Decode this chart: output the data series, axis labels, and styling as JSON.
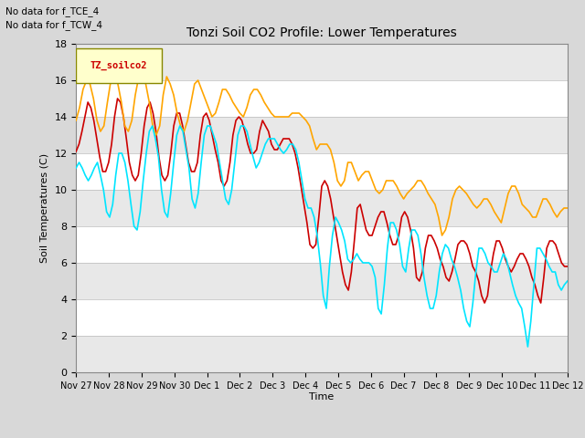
{
  "title": "Tonzi Soil CO2 Profile: Lower Temperatures",
  "xlabel": "Time",
  "ylabel": "Soil Temperatures (C)",
  "top_left_text": [
    "No data for f_TCE_4",
    "No data for f_TCW_4"
  ],
  "legend_label_text": "TZ_soilco2",
  "ylim": [
    0,
    18
  ],
  "yticks": [
    0,
    2,
    4,
    6,
    8,
    10,
    12,
    14,
    16,
    18
  ],
  "xtick_labels": [
    "Nov 27",
    "Nov 28",
    "Nov 29",
    "Nov 30",
    "Dec 1",
    "Dec 2",
    "Dec 3",
    "Dec 4",
    "Dec 5",
    "Dec 6",
    "Dec 7",
    "Dec 8",
    "Dec 9",
    "Dec 10",
    "Dec 11",
    "Dec 12"
  ],
  "series": {
    "open": {
      "color": "#cc0000",
      "linewidth": 1.2,
      "data": [
        12.1,
        12.5,
        13.2,
        14.0,
        14.8,
        14.5,
        13.8,
        12.8,
        11.8,
        11.0,
        11.0,
        11.5,
        12.5,
        14.0,
        15.0,
        14.8,
        14.0,
        12.8,
        11.5,
        10.8,
        10.5,
        10.8,
        12.0,
        13.5,
        14.5,
        14.8,
        14.2,
        13.2,
        11.8,
        10.8,
        10.5,
        10.8,
        12.0,
        13.5,
        14.2,
        14.2,
        13.5,
        12.5,
        11.5,
        11.0,
        11.0,
        11.5,
        13.0,
        14.0,
        14.2,
        13.8,
        13.0,
        12.2,
        11.5,
        10.5,
        10.2,
        10.5,
        11.5,
        13.0,
        13.8,
        14.0,
        13.8,
        13.2,
        12.5,
        12.0,
        12.0,
        12.2,
        13.2,
        13.8,
        13.5,
        13.2,
        12.5,
        12.2,
        12.2,
        12.5,
        12.8,
        12.8,
        12.8,
        12.5,
        12.0,
        11.2,
        10.2,
        9.2,
        8.2,
        7.0,
        6.8,
        7.0,
        8.5,
        10.2,
        10.5,
        10.2,
        9.5,
        8.5,
        7.5,
        6.5,
        5.5,
        4.8,
        4.5,
        5.5,
        7.2,
        9.0,
        9.2,
        8.5,
        7.8,
        7.5,
        7.5,
        8.0,
        8.5,
        8.8,
        8.8,
        8.2,
        7.5,
        7.0,
        7.0,
        7.5,
        8.5,
        8.8,
        8.5,
        7.8,
        6.8,
        5.2,
        5.0,
        5.5,
        6.8,
        7.5,
        7.5,
        7.2,
        6.8,
        6.2,
        5.8,
        5.2,
        5.0,
        5.5,
        6.2,
        7.0,
        7.2,
        7.2,
        7.0,
        6.5,
        5.8,
        5.5,
        5.0,
        4.2,
        3.8,
        4.2,
        5.5,
        6.5,
        7.2,
        7.2,
        6.8,
        6.2,
        5.8,
        5.5,
        5.8,
        6.2,
        6.5,
        6.5,
        6.2,
        5.8,
        5.2,
        4.8,
        4.2,
        3.8,
        5.2,
        6.8,
        7.2,
        7.2,
        7.0,
        6.5,
        6.0,
        5.8,
        5.8
      ]
    },
    "tree": {
      "color": "#ffa500",
      "linewidth": 1.2,
      "data": [
        13.8,
        14.5,
        15.5,
        16.0,
        15.8,
        15.0,
        13.8,
        13.2,
        13.5,
        14.8,
        16.0,
        16.2,
        15.8,
        14.8,
        13.5,
        13.2,
        13.8,
        15.2,
        16.2,
        16.2,
        15.8,
        14.8,
        13.5,
        13.0,
        13.5,
        15.2,
        16.2,
        15.8,
        15.2,
        14.2,
        13.5,
        13.2,
        13.8,
        14.8,
        15.8,
        16.0,
        15.5,
        15.0,
        14.5,
        14.0,
        14.2,
        14.8,
        15.5,
        15.5,
        15.2,
        14.8,
        14.5,
        14.2,
        14.0,
        14.5,
        15.2,
        15.5,
        15.5,
        15.2,
        14.8,
        14.5,
        14.2,
        14.0,
        14.0,
        14.0,
        14.0,
        14.0,
        14.2,
        14.2,
        14.2,
        14.0,
        13.8,
        13.5,
        12.8,
        12.2,
        12.5,
        12.5,
        12.5,
        12.2,
        11.5,
        10.5,
        10.2,
        10.5,
        11.5,
        11.5,
        11.0,
        10.5,
        10.8,
        11.0,
        11.0,
        10.5,
        10.0,
        9.8,
        10.0,
        10.5,
        10.5,
        10.5,
        10.2,
        9.8,
        9.5,
        9.8,
        10.0,
        10.2,
        10.5,
        10.5,
        10.2,
        9.8,
        9.5,
        9.2,
        8.5,
        7.5,
        7.8,
        8.5,
        9.5,
        10.0,
        10.2,
        10.0,
        9.8,
        9.5,
        9.2,
        9.0,
        9.2,
        9.5,
        9.5,
        9.2,
        8.8,
        8.5,
        8.2,
        9.0,
        9.8,
        10.2,
        10.2,
        9.8,
        9.2,
        9.0,
        8.8,
        8.5,
        8.5,
        9.0,
        9.5,
        9.5,
        9.2,
        8.8,
        8.5,
        8.8,
        9.0,
        9.0
      ]
    },
    "tree2": {
      "color": "#00e5ff",
      "linewidth": 1.2,
      "data": [
        11.2,
        11.5,
        11.2,
        10.8,
        10.5,
        10.8,
        11.2,
        11.5,
        10.8,
        10.0,
        8.8,
        8.5,
        9.2,
        10.8,
        12.0,
        12.0,
        11.5,
        10.5,
        9.2,
        8.0,
        7.8,
        8.8,
        10.5,
        12.0,
        13.2,
        13.5,
        12.8,
        11.8,
        10.0,
        8.8,
        8.5,
        9.8,
        11.5,
        13.0,
        13.5,
        13.2,
        12.2,
        11.2,
        9.5,
        9.0,
        9.8,
        11.5,
        13.0,
        13.5,
        13.5,
        13.0,
        12.5,
        11.5,
        10.5,
        9.5,
        9.2,
        10.0,
        11.5,
        13.0,
        13.5,
        13.5,
        13.2,
        12.5,
        11.8,
        11.2,
        11.5,
        12.0,
        12.5,
        12.8,
        12.8,
        12.8,
        12.5,
        12.2,
        12.0,
        12.2,
        12.5,
        12.5,
        12.2,
        11.5,
        10.5,
        9.5,
        9.0,
        9.0,
        8.5,
        7.5,
        6.0,
        4.2,
        3.5,
        5.8,
        7.5,
        8.5,
        8.2,
        7.8,
        7.2,
        6.2,
        6.0,
        6.2,
        6.5,
        6.2,
        6.0,
        6.0,
        6.0,
        5.8,
        5.2,
        3.5,
        3.2,
        4.8,
        6.8,
        8.2,
        8.2,
        7.8,
        7.0,
        5.8,
        5.5,
        6.8,
        7.8,
        7.8,
        7.5,
        6.5,
        5.2,
        4.2,
        3.5,
        3.5,
        4.2,
        5.5,
        6.5,
        7.0,
        6.8,
        6.2,
        5.8,
        5.2,
        4.5,
        3.5,
        2.8,
        2.5,
        3.8,
        5.5,
        6.8,
        6.8,
        6.5,
        6.0,
        5.8,
        5.5,
        5.5,
        6.0,
        6.5,
        6.2,
        5.5,
        4.8,
        4.2,
        3.8,
        3.5,
        2.5,
        1.4,
        2.8,
        4.8,
        6.8,
        6.8,
        6.5,
        6.2,
        5.8,
        5.5,
        5.5,
        4.8,
        4.5,
        4.8,
        5.0
      ]
    }
  },
  "background_color": "#d8d8d8",
  "plot_bg": "#ffffff",
  "band_colors": [
    "#e8e8e8",
    "#ffffff"
  ],
  "legend_box_color": "#ffffcc",
  "legend_box_edge": "#888800",
  "figsize": [
    6.4,
    4.8
  ],
  "dpi": 100
}
